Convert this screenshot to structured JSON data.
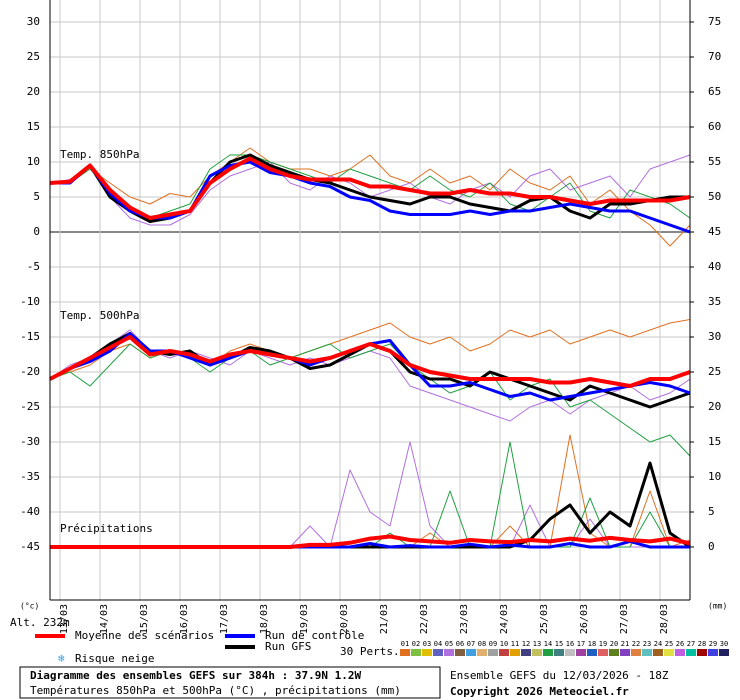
{
  "chart_data": {
    "type": "line",
    "labels": [
      "Temp. 850hPa",
      "Temp. 500hPa",
      "Précipitations"
    ],
    "y_unit": "(°c)",
    "y2_unit": "(mm)",
    "altitude": "Alt. 232m",
    "xlim": [
      0,
      384
    ],
    "xticks": [
      {
        "value": 6,
        "label": "13/03"
      },
      {
        "value": 30,
        "label": "14/03"
      },
      {
        "value": 54,
        "label": "15/03"
      },
      {
        "value": 78,
        "label": "16/03"
      },
      {
        "value": 102,
        "label": "17/03"
      },
      {
        "value": 126,
        "label": "18/03"
      },
      {
        "value": 150,
        "label": "19/03"
      },
      {
        "value": 174,
        "label": "20/03"
      },
      {
        "value": 198,
        "label": "21/03"
      },
      {
        "value": 222,
        "label": "22/03"
      },
      {
        "value": 246,
        "label": "23/03"
      },
      {
        "value": 270,
        "label": "24/03"
      },
      {
        "value": 294,
        "label": "25/03"
      },
      {
        "value": 318,
        "label": "26/03"
      },
      {
        "value": 342,
        "label": "27/03"
      },
      {
        "value": 366,
        "label": "28/03"
      }
    ],
    "ylim": [
      -52.5,
      33
    ],
    "yticks": [
      -45,
      -40,
      -35,
      -30,
      -25,
      -20,
      -15,
      -10,
      -5,
      0,
      5,
      10,
      15,
      20,
      25,
      30
    ],
    "y2lim": [
      -7.5,
      78
    ],
    "y2ticks": [
      0,
      5,
      10,
      15,
      20,
      25,
      30,
      35,
      40,
      45,
      50,
      55,
      60,
      65,
      70,
      75
    ],
    "grid": true,
    "x": [
      0,
      12,
      24,
      36,
      48,
      60,
      72,
      84,
      96,
      108,
      120,
      132,
      144,
      156,
      168,
      180,
      192,
      204,
      216,
      228,
      240,
      252,
      264,
      276,
      288,
      300,
      312,
      324,
      336,
      348,
      360,
      372,
      384
    ],
    "series": [
      {
        "name": "01",
        "color": "#e07020",
        "values": [
          7,
          7,
          9,
          7,
          5,
          4,
          5.5,
          5,
          8,
          10,
          12,
          10,
          9,
          9,
          8,
          9,
          11,
          8,
          7,
          9,
          7,
          8,
          6,
          9,
          7,
          6,
          8,
          4,
          6,
          3,
          1,
          -2,
          1
        ]
      },
      {
        "name": "05",
        "color": "#b070e0",
        "values": [
          7,
          7.5,
          9.5,
          5,
          2,
          1,
          1,
          2.5,
          6,
          8,
          9,
          10,
          7,
          6,
          8,
          7,
          5,
          6,
          7,
          5,
          4,
          6,
          7,
          5,
          8,
          9,
          6,
          7,
          8,
          5,
          9,
          10,
          11
        ]
      },
      {
        "name": "14",
        "color": "#20a040",
        "values": [
          7,
          7,
          9,
          6,
          3,
          2,
          3,
          4,
          9,
          11,
          11,
          10,
          9,
          8,
          7,
          9,
          8,
          7,
          6,
          8,
          6,
          5,
          7,
          4,
          3,
          5,
          7,
          3,
          2,
          6,
          5,
          4,
          2
        ]
      },
      {
        "name": "01",
        "color": "#e07020",
        "values": [
          -21,
          -20,
          -19,
          -17,
          -16,
          -18,
          -17,
          -18,
          -19,
          -17,
          -16,
          -17,
          -18,
          -17,
          -16,
          -15,
          -14,
          -13,
          -15,
          -16,
          -15,
          -17,
          -16,
          -14,
          -15,
          -14,
          -16,
          -15,
          -14,
          -15,
          -14,
          -13,
          -12.5
        ]
      },
      {
        "name": "05",
        "color": "#b070e0",
        "values": [
          -21,
          -19,
          -18,
          -16,
          -14,
          -17,
          -18,
          -17,
          -18,
          -19,
          -17,
          -18,
          -19,
          -18,
          -19,
          -18,
          -17,
          -18,
          -22,
          -23,
          -24,
          -25,
          -26,
          -27,
          -25,
          -24,
          -26,
          -24,
          -23,
          -22,
          -24,
          -23,
          -21
        ]
      },
      {
        "name": "14",
        "color": "#20a040",
        "values": [
          -21,
          -20,
          -22,
          -19,
          -16,
          -18,
          -17,
          -18,
          -20,
          -18,
          -17,
          -19,
          -18,
          -17,
          -16,
          -18,
          -17,
          -16,
          -19,
          -21,
          -23,
          -22,
          -20,
          -24,
          -22,
          -21,
          -25,
          -24,
          -26,
          -28,
          -30,
          -29,
          -32
        ]
      },
      {
        "name": "01",
        "color": "#e07020",
        "axis": "y2",
        "values": [
          0,
          0,
          0,
          0,
          0,
          0,
          0,
          0,
          0,
          0,
          0,
          0,
          0,
          0,
          0,
          0,
          0,
          0,
          0,
          2,
          0,
          0,
          0,
          3,
          0,
          0,
          16,
          2,
          0,
          0,
          8,
          0,
          1
        ]
      },
      {
        "name": "05",
        "color": "#b070e0",
        "axis": "y2",
        "values": [
          0,
          0,
          0,
          0,
          0,
          0,
          0,
          0,
          0,
          0,
          0,
          0,
          0,
          3,
          0,
          11,
          5,
          3,
          15,
          3,
          0,
          0,
          0,
          0,
          6,
          0,
          0,
          4,
          0,
          0,
          0,
          0,
          0
        ]
      },
      {
        "name": "14",
        "color": "#20a040",
        "axis": "y2",
        "values": [
          0,
          0,
          0,
          0,
          0,
          0,
          0,
          0,
          0,
          0,
          0,
          0,
          0,
          0,
          0,
          0,
          0,
          2,
          0,
          0,
          8,
          0,
          0,
          15,
          0,
          0,
          0,
          7,
          0,
          0,
          5,
          0,
          0
        ]
      },
      {
        "name": "Run GFS",
        "color": "#000000",
        "values": [
          7,
          7.2,
          9.5,
          5,
          3,
          1.5,
          2,
          3,
          7,
          10,
          11,
          9.5,
          8.5,
          7.5,
          7,
          6,
          5,
          4.5,
          4,
          5,
          5,
          4,
          3.5,
          3,
          4.5,
          5,
          3,
          2,
          4,
          4,
          4.5,
          5,
          5
        ]
      },
      {
        "name": "Run GFS",
        "color": "#000000",
        "values": [
          -21,
          -19.5,
          -18,
          -16,
          -14.5,
          -17,
          -17.5,
          -17,
          -19,
          -18,
          -16.5,
          -17,
          -18,
          -19.5,
          -19,
          -17.5,
          -16,
          -17,
          -20,
          -21,
          -21,
          -22,
          -20,
          -21,
          -22,
          -23,
          -24,
          -22,
          -23,
          -24,
          -25,
          -24,
          -23
        ]
      },
      {
        "name": "Run GFS",
        "color": "#000000",
        "axis": "y2",
        "values": [
          0,
          0,
          0,
          0,
          0,
          0,
          0,
          0,
          0,
          0,
          0,
          0,
          0,
          0,
          0,
          0,
          0,
          0,
          0,
          0,
          0,
          0,
          0,
          0,
          1,
          4,
          6,
          2,
          5,
          3,
          12,
          2,
          0
        ]
      },
      {
        "name": "Run de contrôle",
        "color": "#0000ff",
        "values": [
          7,
          7,
          9.5,
          5.5,
          3,
          2,
          2,
          3,
          8,
          9.5,
          10,
          8.5,
          8,
          7,
          6.5,
          5,
          4.5,
          3,
          2.5,
          2.5,
          2.5,
          3,
          2.5,
          3,
          3,
          3.5,
          4,
          3.5,
          3,
          3,
          2,
          1,
          0
        ]
      },
      {
        "name": "Run de contrôle",
        "color": "#0000ff",
        "values": [
          -21,
          -19.5,
          -18.5,
          -17,
          -14.5,
          -17,
          -17,
          -18,
          -19,
          -18,
          -17,
          -17.5,
          -18,
          -19,
          -18,
          -17,
          -16,
          -15.5,
          -19,
          -22,
          -22,
          -21.5,
          -22.5,
          -23.5,
          -23,
          -24,
          -23.5,
          -23,
          -22.5,
          -22,
          -21.5,
          -22,
          -23
        ]
      },
      {
        "name": "Run de contrôle",
        "color": "#0000ff",
        "axis": "y2",
        "values": [
          0,
          0,
          0,
          0,
          0,
          0,
          0,
          0,
          0,
          0,
          0,
          0,
          0,
          0,
          0,
          0,
          0.5,
          0,
          0.2,
          0,
          0,
          0.4,
          0,
          0.3,
          0,
          0,
          0.5,
          0,
          0,
          0.8,
          0,
          0,
          0
        ]
      },
      {
        "name": "Moyenne des scénarios",
        "color": "#ff0000",
        "values": [
          7,
          7.2,
          9.5,
          6,
          3.5,
          2,
          2.5,
          3,
          7,
          9,
          10.5,
          9,
          8,
          7.5,
          7.5,
          7.5,
          6.5,
          6.5,
          6,
          5.5,
          5.5,
          6,
          5.5,
          5.5,
          5,
          5,
          4.5,
          4,
          4.5,
          4.5,
          4.5,
          4.5,
          5
        ]
      },
      {
        "name": "Moyenne des scénarios",
        "color": "#ff0000",
        "values": [
          -21,
          -19.5,
          -18,
          -16.5,
          -15,
          -17.5,
          -17,
          -17.5,
          -18.5,
          -17.5,
          -17,
          -17.5,
          -18,
          -18.5,
          -18,
          -17,
          -16,
          -17,
          -19,
          -20,
          -20.5,
          -21,
          -21,
          -21,
          -21,
          -21.5,
          -21.5,
          -21,
          -21.5,
          -22,
          -21,
          -21,
          -20
        ]
      },
      {
        "name": "Moyenne des scénarios",
        "color": "#ff0000",
        "axis": "y2",
        "values": [
          0,
          0,
          0,
          0,
          0,
          0,
          0,
          0,
          0,
          0,
          0,
          0,
          0,
          0.3,
          0.3,
          0.6,
          1.2,
          1.5,
          1,
          0.8,
          0.6,
          1,
          0.8,
          0.7,
          1,
          0.8,
          1.2,
          0.9,
          1.3,
          1,
          0.8,
          1.2,
          0.5
        ]
      }
    ],
    "legend": [
      {
        "name": "Moyenne des scénarios",
        "color": "#ff0000"
      },
      {
        "name": "Run de contrôle",
        "color": "#0000ff"
      },
      {
        "name": "Run GFS",
        "color": "#000000"
      }
    ],
    "snow_label": "Risque neige",
    "members_label": "30 Perts.",
    "members": [
      {
        "name": "01",
        "color": "#e07020"
      },
      {
        "name": "02",
        "color": "#80c040"
      },
      {
        "name": "03",
        "color": "#e0c000"
      },
      {
        "name": "04",
        "color": "#6060c0"
      },
      {
        "name": "05",
        "color": "#b070e0"
      },
      {
        "name": "06",
        "color": "#806040"
      },
      {
        "name": "07",
        "color": "#40a0e0"
      },
      {
        "name": "08",
        "color": "#e0b070"
      },
      {
        "name": "09",
        "color": "#a0a0a0"
      },
      {
        "name": "10",
        "color": "#c04040"
      },
      {
        "name": "11",
        "color": "#e0a000"
      },
      {
        "name": "12",
        "color": "#404080"
      },
      {
        "name": "13",
        "color": "#c0c060"
      },
      {
        "name": "14",
        "color": "#20a040"
      },
      {
        "name": "15",
        "color": "#408080"
      },
      {
        "name": "16",
        "color": "#c0c0c0"
      },
      {
        "name": "17",
        "color": "#a040a0"
      },
      {
        "name": "18",
        "color": "#2060c0"
      },
      {
        "name": "19",
        "color": "#e06060"
      },
      {
        "name": "20",
        "color": "#608020"
      },
      {
        "name": "21",
        "color": "#8040c0"
      },
      {
        "name": "22",
        "color": "#e08040"
      },
      {
        "name": "23",
        "color": "#60c0c0"
      },
      {
        "name": "24",
        "color": "#a06020"
      },
      {
        "name": "25",
        "color": "#e0e040"
      },
      {
        "name": "26",
        "color": "#c060e0"
      },
      {
        "name": "27",
        "color": "#00c0a0"
      },
      {
        "name": "28",
        "color": "#a00000"
      },
      {
        "name": "29",
        "color": "#4040e0"
      },
      {
        "name": "30",
        "color": "#202060"
      }
    ],
    "footer_title": "Diagramme des ensembles GEFS sur 384h : 37.9N 1.2W",
    "footer_subtitle": "Températures 850hPa et 500hPa (°C) , précipitations (mm)",
    "run_info": "Ensemble GEFS du 12/03/2026 - 18Z",
    "copyright": "Copyright 2026 Meteociel.fr"
  }
}
